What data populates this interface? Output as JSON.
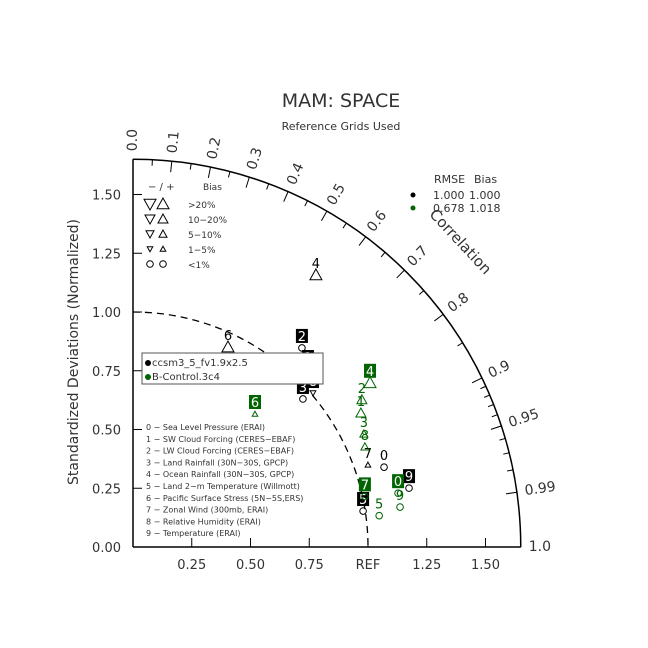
{
  "chart_data": {
    "type": "scatter",
    "subtype": "taylor-diagram",
    "title": "MAM: SPACE",
    "subtitle": "Reference Grids Used",
    "ylabel": "Standardized Deviations (Normalized)",
    "angular_label": "Correlation",
    "std_range": [
      0,
      1.65
    ],
    "y_ticks": [
      {
        "value": 0.0,
        "label": "0.00"
      },
      {
        "value": 0.25,
        "label": "0.25"
      },
      {
        "value": 0.5,
        "label": "0.50"
      },
      {
        "value": 0.75,
        "label": "0.75"
      },
      {
        "value": 1.0,
        "label": "1.00"
      },
      {
        "value": 1.25,
        "label": "1.25"
      },
      {
        "value": 1.5,
        "label": "1.50"
      }
    ],
    "x_ticks": [
      {
        "value": 0.25,
        "label": "0.25"
      },
      {
        "value": 0.5,
        "label": "0.50"
      },
      {
        "value": 0.75,
        "label": "0.75"
      },
      {
        "value": 1.0,
        "label": "REF"
      },
      {
        "value": 1.25,
        "label": "1.25"
      },
      {
        "value": 1.5,
        "label": "1.50"
      }
    ],
    "corr_ticks": [
      {
        "value": 0.0,
        "label": "0.0"
      },
      {
        "value": 0.1,
        "label": "0.1"
      },
      {
        "value": 0.2,
        "label": "0.2"
      },
      {
        "value": 0.3,
        "label": "0.3"
      },
      {
        "value": 0.4,
        "label": "0.4"
      },
      {
        "value": 0.5,
        "label": "0.5"
      },
      {
        "value": 0.6,
        "label": "0.6"
      },
      {
        "value": 0.7,
        "label": "0.7"
      },
      {
        "value": 0.8,
        "label": "0.8"
      },
      {
        "value": 0.9,
        "label": "0.9"
      },
      {
        "value": 0.95,
        "label": "0.95"
      },
      {
        "value": 0.99,
        "label": "0.99"
      },
      {
        "value": 1.0,
        "label": "1.0"
      }
    ],
    "reference_std": 1.0,
    "series": [
      {
        "name": "ccsm3_5_fv1.9x2.5",
        "color": "#000000",
        "rmse": "1.000",
        "bias": "1.000",
        "points": [
          {
            "id": "0",
            "std": 1.121,
            "corr": 0.953,
            "marker": "circle",
            "bias_class": "<1%",
            "boxed": false
          },
          {
            "id": "1",
            "std": 1.062,
            "corr": 0.701,
            "marker": "up",
            "bias_class": "10-20%",
            "boxed": true
          },
          {
            "id": "2",
            "std": 1.111,
            "corr": 0.647,
            "marker": "circle",
            "bias_class": "<1%",
            "boxed": true
          },
          {
            "id": "3",
            "std": 0.959,
            "corr": 0.754,
            "marker": "circle",
            "bias_class": "<1%",
            "boxed": true
          },
          {
            "id": "4",
            "std": 1.395,
            "corr": 0.558,
            "marker": "up",
            "bias_class": ">20%",
            "boxed": false
          },
          {
            "id": "5",
            "std": 0.991,
            "corr": 0.988,
            "marker": "circle",
            "bias_class": "<1%",
            "boxed": true
          },
          {
            "id": "6",
            "std": 0.942,
            "corr": 0.429,
            "marker": "up",
            "bias_class": ">20%",
            "boxed": false
          },
          {
            "id": "7",
            "std": 1.059,
            "corr": 0.944,
            "marker": "up",
            "bias_class": "1-5%",
            "boxed": false
          },
          {
            "id": "8",
            "std": 1.008,
            "corr": 0.76,
            "marker": "down",
            "bias_class": "1-5%",
            "boxed": true
          },
          {
            "id": "9",
            "std": 1.201,
            "corr": 0.978,
            "marker": "circle",
            "bias_class": "<1%",
            "boxed": true
          }
        ]
      },
      {
        "name": "B-Control.3c4",
        "color": "#006400",
        "rmse": "0.678",
        "bias": "1.018",
        "points": [
          {
            "id": "0",
            "std": 1.151,
            "corr": 0.98,
            "marker": "circle",
            "bias_class": "<1%",
            "boxed": true
          },
          {
            "id": "1",
            "std": 1.125,
            "corr": 0.862,
            "marker": "up",
            "bias_class": "10-20%",
            "boxed": false
          },
          {
            "id": "2",
            "std": 1.158,
            "corr": 0.841,
            "marker": "up",
            "bias_class": "10-20%",
            "boxed": false
          },
          {
            "id": "3",
            "std": 1.094,
            "corr": 0.898,
            "marker": "up",
            "bias_class": "5-10%",
            "boxed": false
          },
          {
            "id": "4",
            "std": 1.227,
            "corr": 0.822,
            "marker": "up",
            "bias_class": ">20%",
            "boxed": true
          },
          {
            "id": "5",
            "std": 1.056,
            "corr": 0.992,
            "marker": "circle",
            "bias_class": "<1%",
            "boxed": false
          },
          {
            "id": "6",
            "std": 0.768,
            "corr": 0.676,
            "marker": "up",
            "bias_class": "1-5%",
            "boxed": true
          },
          {
            "id": "7",
            "std": 1.01,
            "corr": 0.977,
            "marker": "circle",
            "bias_class": "<1%",
            "boxed": true
          },
          {
            "id": "8",
            "std": 1.075,
            "corr": 0.918,
            "marker": "up",
            "bias_class": "5-10%",
            "boxed": false
          },
          {
            "id": "9",
            "std": 1.149,
            "corr": 0.989,
            "marker": "circle",
            "bias_class": "<1%",
            "boxed": false
          }
        ]
      }
    ],
    "stats_header": {
      "rmse": "RMSE",
      "bias": "Bias"
    },
    "bias_legend": {
      "header_sign": "− / +",
      "header": "Bias",
      "rows": [
        ">20%",
        "10−20%",
        "5−10%",
        "1−5%",
        "<1%"
      ]
    },
    "variables": [
      "0 − Sea Level Pressure (ERAI)",
      "1 − SW Cloud Forcing (CERES−EBAF)",
      "2 − LW Cloud Forcing (CERES−EBAF)",
      "3 − Land Rainfall (30N−30S, GPCP)",
      "4 − Ocean Rainfall (30N−30S, GPCP)",
      "5 − Land 2−m Temperature (Willmott)",
      "6 − Pacific Surface Stress (5N−5S,ERS)",
      "7 − Zonal Wind (300mb, ERAI)",
      "8 − Relative Humidity (ERAI)",
      "9 − Temperature (ERAI)"
    ]
  }
}
